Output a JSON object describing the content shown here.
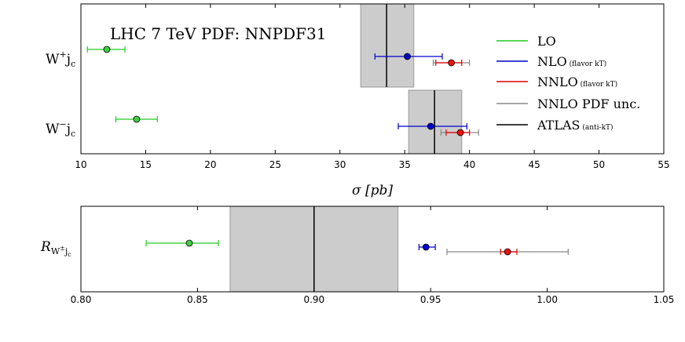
{
  "chart_data": [
    {
      "type": "scatter",
      "panel": "cross-sections",
      "title": "LHC 7 TeV PDF: NNPDF31",
      "xlabel": "σ [pb]",
      "ylabel": "",
      "xlim": [
        10,
        55
      ],
      "xticks": [
        "10",
        "15",
        "20",
        "25",
        "30",
        "35",
        "40",
        "45",
        "50",
        "55"
      ],
      "categories": [
        "W⁺j꜀",
        "W⁻j꜀"
      ],
      "category_labels": [
        {
          "main": "W",
          "sup": "+",
          "tail": "j",
          "sub": "c"
        },
        {
          "main": "W",
          "sup": "−",
          "tail": "j",
          "sub": "c"
        }
      ],
      "legend_position": "right",
      "legend": [
        {
          "key": "LO",
          "main": "LO",
          "small": "",
          "color": "#22cc22"
        },
        {
          "key": "NLO",
          "main": "NLO",
          "small": "(flavor kT)",
          "color": "#0000cc"
        },
        {
          "key": "NNLO",
          "main": "NNLO",
          "small": "(flavor kT)",
          "color": "#dd0000"
        },
        {
          "key": "PDF",
          "main": "NNLO PDF unc.",
          "small": "",
          "color": "#888888"
        },
        {
          "key": "ATLAS",
          "main": "ATLAS",
          "small": "(anti-kT)",
          "color": "#000000"
        }
      ],
      "atlas_bands": [
        {
          "category": "W⁺j꜀",
          "center": 33.6,
          "low": 31.6,
          "high": 35.7
        },
        {
          "category": "W⁻j꜀",
          "center": 37.3,
          "low": 35.3,
          "high": 39.4
        }
      ],
      "series": [
        {
          "name": "LO",
          "points": [
            {
              "category": "W⁺j꜀",
              "value": 12.0,
              "low": 10.5,
              "high": 13.4
            },
            {
              "category": "W⁻j꜀",
              "value": 14.3,
              "low": 12.7,
              "high": 15.9
            }
          ]
        },
        {
          "name": "NLO",
          "points": [
            {
              "category": "W⁺j꜀",
              "value": 35.2,
              "low": 32.7,
              "high": 37.9
            },
            {
              "category": "W⁻j꜀",
              "value": 37.0,
              "low": 34.5,
              "high": 39.8
            }
          ]
        },
        {
          "name": "NNLO PDF unc.",
          "points": [
            {
              "category": "W⁺j꜀",
              "value": 38.6,
              "low": 37.2,
              "high": 40.0
            },
            {
              "category": "W⁻j꜀",
              "value": 39.3,
              "low": 37.8,
              "high": 40.7
            }
          ]
        },
        {
          "name": "NNLO",
          "points": [
            {
              "category": "W⁺j꜀",
              "value": 38.6,
              "low": 37.4,
              "high": 39.4
            },
            {
              "category": "W⁻j꜀",
              "value": 39.3,
              "low": 38.2,
              "high": 40.0
            }
          ]
        }
      ]
    },
    {
      "type": "scatter",
      "panel": "ratio",
      "title": "",
      "xlabel": "",
      "ylabel": "",
      "xlim": [
        0.8,
        1.05
      ],
      "xticks": [
        "0.80",
        "0.85",
        "0.90",
        "0.95",
        "1.00",
        "1.05"
      ],
      "category_label": {
        "main": "R",
        "sub": "W",
        "subsup": "±",
        "subtail": "j",
        "subsub": "c"
      },
      "atlas_band": {
        "center": 0.9,
        "low": 0.864,
        "high": 0.936
      },
      "series": [
        {
          "name": "LO",
          "value": 0.8465,
          "low": 0.828,
          "high": 0.859
        },
        {
          "name": "NLO",
          "value": 0.948,
          "low": 0.945,
          "high": 0.952
        },
        {
          "name": "NNLO PDF unc.",
          "value": 0.983,
          "low": 0.957,
          "high": 1.009
        },
        {
          "name": "NNLO",
          "value": 0.983,
          "low": 0.98,
          "high": 0.987
        }
      ]
    }
  ]
}
